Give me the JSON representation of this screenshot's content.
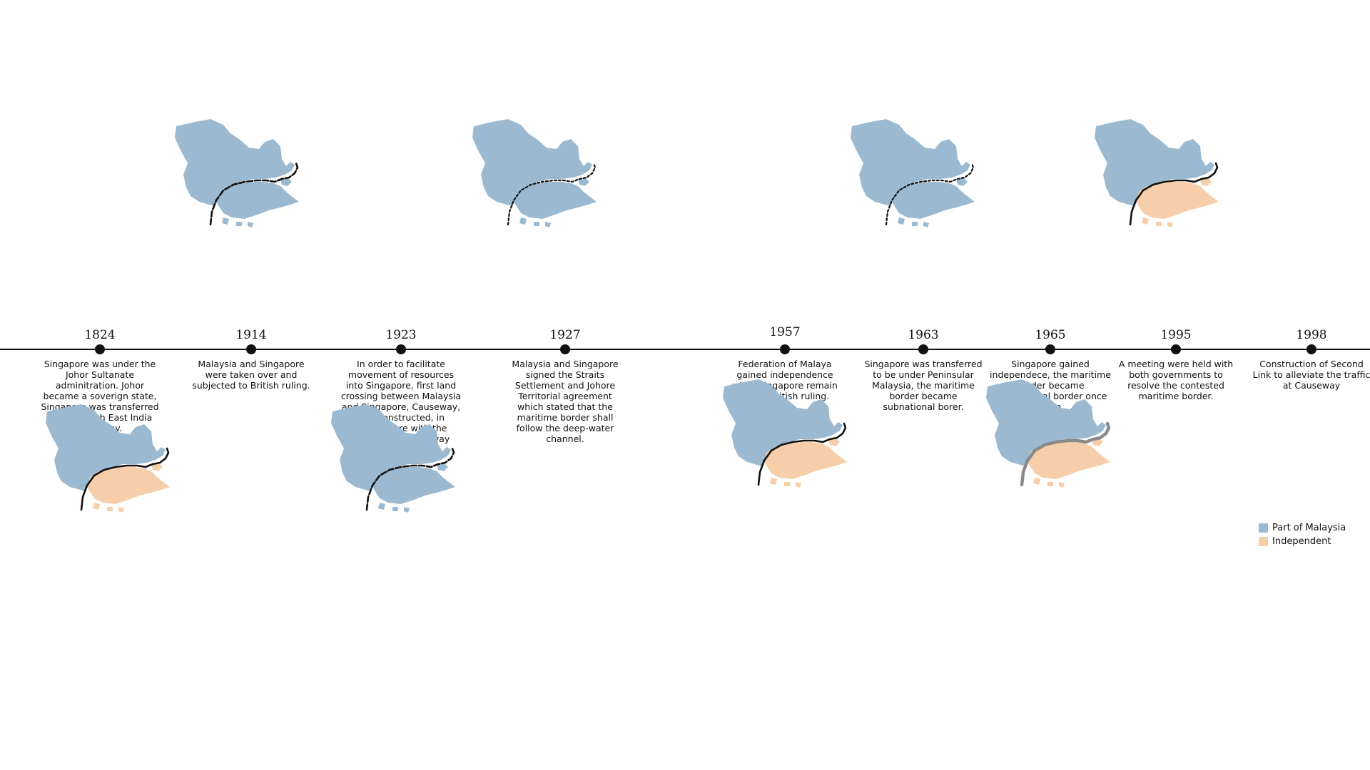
{
  "timeline": {
    "events": [
      {
        "year": "1824",
        "description": "Singapore was under the Johor Sultanate adminitration. Johor became a soverign state, Singapore was transferred to the British East India Company.",
        "map": {
          "state": "independent",
          "border": "solid"
        }
      },
      {
        "year": "1914",
        "description": "Malaysia and Singapore were taken over and subjected to British ruling.",
        "map": {
          "state": "malaysia",
          "border": "dashed"
        }
      },
      {
        "year": "1923",
        "description": "In order to facilitate movement of resources into Singapore, first land crossing between Malaysia and Singapore, Causeway, was constructed, in conjuncture with the Tanjong Pagar railway station.",
        "map": {
          "state": "malaysia",
          "border": "dashed"
        }
      },
      {
        "year": "1927",
        "description": "Malaysia and Singapore signed the Straits Settlement and Johore Territorial agreement which stated that the maritime border shall follow the deep-water channel.",
        "map": {
          "state": "malaysia",
          "border": "dotted"
        }
      },
      {
        "year": "1957",
        "description": "Federation of Malaya gained independence while Singapore remain under British ruling.",
        "map": {
          "state": "independent",
          "border": "solid"
        }
      },
      {
        "year": "1963",
        "description": "Singapore was transferred to be under Peninsular Malaysia, the maritime border became subnational borer.",
        "map": {
          "state": "malaysia",
          "border": "dotted"
        }
      },
      {
        "year": "1965",
        "description": "Singapore gained independece, the maritime border became international border once again.",
        "map": {
          "state": "independent",
          "border": "grey-solid"
        }
      },
      {
        "year": "1995",
        "description": "A meeting were held with both governments to resolve the contested maritime border.",
        "map": {
          "state": "independent",
          "border": "solid"
        }
      },
      {
        "year": "1998",
        "description": "Construction of Second Link to alleviate the traffic at Causeway",
        "map": null
      }
    ]
  },
  "legend": {
    "items": [
      {
        "label": "Part of Malaysia",
        "color": "#9bbad1"
      },
      {
        "label": "Independent",
        "color": "#f6cfaa"
      }
    ]
  },
  "colors": {
    "malaysia": "#9bbad1",
    "independent": "#f6cfaa",
    "border": "#111111",
    "grey_border": "#8a8a8a",
    "axis": "#111111"
  }
}
